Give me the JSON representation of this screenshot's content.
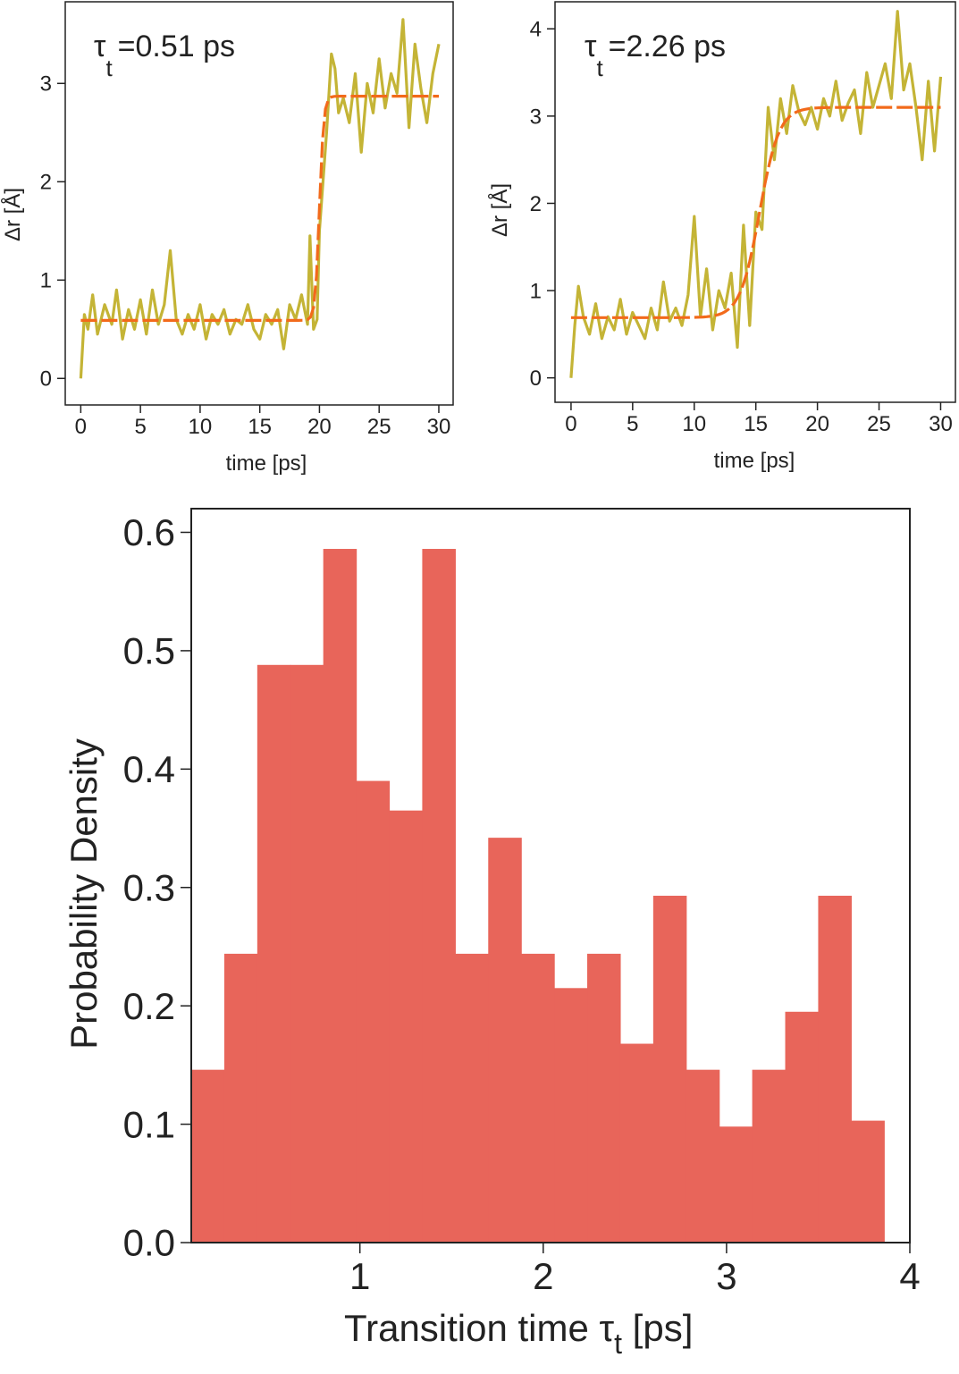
{
  "chart_data": [
    {
      "type": "line",
      "annotation": {
        "symbol": "τ",
        "subscript": "t",
        "value_text": "=0.51 ps"
      },
      "xlabel": "time [ps]",
      "ylabel": "Δr [Å]",
      "xlim": [
        -1.3,
        31.2
      ],
      "ylim": [
        -0.27,
        3.83
      ],
      "xticks": [
        0,
        5,
        10,
        15,
        20,
        25,
        30
      ],
      "yticks": [
        0,
        1,
        2,
        3
      ],
      "fit": {
        "low": 0.59,
        "high": 2.87,
        "center": 20.0,
        "width": 0.51
      },
      "colors": {
        "data": "#c4b436",
        "fit": "#f26a1b"
      },
      "series": [
        {
          "x": [
            0,
            0.3,
            0.6,
            1,
            1.4,
            2,
            2.6,
            3,
            3.5,
            4,
            4.5,
            5,
            5.5,
            6,
            6.5,
            7,
            7.5,
            8,
            8.5,
            9,
            9.5,
            10,
            10.5,
            11,
            11.5,
            12,
            12.5,
            13,
            13.5,
            14,
            14.5,
            15,
            15.5,
            16,
            16.5,
            17,
            17.5,
            18,
            18.5,
            19,
            19.2,
            19.5,
            19.8,
            20,
            20.3,
            20.6,
            21,
            21.3,
            21.6,
            22,
            22.5,
            23,
            23.5,
            24,
            24.5,
            25,
            25.5,
            26,
            26.5,
            27,
            27.5,
            28,
            28.5,
            29,
            29.5,
            30
          ],
          "y": [
            0,
            0.65,
            0.5,
            0.85,
            0.45,
            0.75,
            0.55,
            0.9,
            0.4,
            0.7,
            0.5,
            0.8,
            0.45,
            0.9,
            0.55,
            0.75,
            1.3,
            0.6,
            0.45,
            0.65,
            0.5,
            0.75,
            0.4,
            0.65,
            0.55,
            0.7,
            0.45,
            0.6,
            0.55,
            0.75,
            0.5,
            0.4,
            0.65,
            0.55,
            0.7,
            0.3,
            0.75,
            0.6,
            0.85,
            0.55,
            1.45,
            0.5,
            0.6,
            1.5,
            2.0,
            2.5,
            3.3,
            3.15,
            2.7,
            2.85,
            2.6,
            3.1,
            2.3,
            3.0,
            2.7,
            3.25,
            2.75,
            3.1,
            2.9,
            3.65,
            2.55,
            3.4,
            2.95,
            2.6,
            3.1,
            3.4
          ]
        }
      ]
    },
    {
      "type": "line",
      "annotation": {
        "symbol": "τ",
        "subscript": "t",
        "value_text": "=2.26 ps"
      },
      "xlabel": "time [ps]",
      "ylabel": "Δr [Å]",
      "xlim": [
        -1.3,
        31.2
      ],
      "ylim": [
        -0.28,
        4.31
      ],
      "xticks": [
        0,
        5,
        10,
        15,
        20,
        25,
        30
      ],
      "yticks": [
        0,
        1,
        2,
        3,
        4
      ],
      "fit": {
        "low": 0.69,
        "high": 3.1,
        "center": 15.3,
        "width": 2.26
      },
      "colors": {
        "data": "#c4b436",
        "fit": "#f26a1b"
      },
      "series": [
        {
          "x": [
            0,
            0.3,
            0.6,
            1,
            1.5,
            2,
            2.5,
            3,
            3.5,
            4,
            4.5,
            5,
            5.5,
            6,
            6.5,
            7,
            7.5,
            8,
            8.5,
            9,
            9.5,
            10,
            10.5,
            11,
            11.5,
            12,
            12.5,
            13,
            13.5,
            14,
            14.5,
            15,
            15.5,
            16,
            16.5,
            17,
            17.5,
            18,
            18.5,
            19,
            19.5,
            20,
            20.5,
            21,
            21.5,
            22,
            22.5,
            23,
            23.5,
            24,
            24.5,
            25,
            25.5,
            26,
            26.5,
            27,
            27.5,
            28,
            28.5,
            29,
            29.5,
            30
          ],
          "y": [
            0,
            0.6,
            1.05,
            0.7,
            0.5,
            0.85,
            0.45,
            0.7,
            0.55,
            0.9,
            0.5,
            0.75,
            0.6,
            0.45,
            0.8,
            0.55,
            1.1,
            0.65,
            0.8,
            0.6,
            0.95,
            1.85,
            0.7,
            1.25,
            0.55,
            1.0,
            0.8,
            1.2,
            0.35,
            1.75,
            0.6,
            1.9,
            1.7,
            3.1,
            2.5,
            3.2,
            2.8,
            3.35,
            3.05,
            2.9,
            3.1,
            2.85,
            3.2,
            3.0,
            3.4,
            2.95,
            3.15,
            3.3,
            2.8,
            3.5,
            3.1,
            3.35,
            3.6,
            3.2,
            4.2,
            3.3,
            3.6,
            3.1,
            2.5,
            3.4,
            2.6,
            3.45
          ]
        }
      ]
    },
    {
      "type": "bar",
      "xlabel": "Transition time τt [ps]",
      "ylabel": "Probability Density",
      "xlim": [
        0.08,
        4.0
      ],
      "ylim": [
        0.0,
        0.62
      ],
      "xticks": [
        1,
        2,
        3,
        4
      ],
      "yticks": [
        0.0,
        0.1,
        0.2,
        0.3,
        0.4,
        0.5,
        0.6
      ],
      "bin_edges": [
        0.08,
        0.26,
        0.44,
        0.62,
        0.8,
        0.98,
        1.16,
        1.34,
        1.52,
        1.7,
        1.88,
        2.06,
        2.24,
        2.42,
        2.6,
        2.78,
        2.96,
        3.14,
        3.32,
        3.5,
        3.68,
        3.86
      ],
      "values": [
        0.146,
        0.244,
        0.488,
        0.488,
        0.586,
        0.39,
        0.365,
        0.586,
        0.244,
        0.342,
        0.244,
        0.215,
        0.244,
        0.168,
        0.293,
        0.146,
        0.098,
        0.146,
        0.195,
        0.293,
        0.103
      ],
      "colors": {
        "bar": "#e8655a"
      }
    }
  ]
}
